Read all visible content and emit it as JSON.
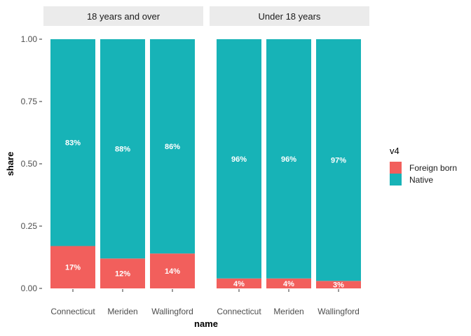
{
  "chart_data": {
    "type": "bar",
    "stacked": true,
    "xlabel": "name",
    "ylabel": "share",
    "ylim": [
      0,
      1
    ],
    "yticks": [
      "0.00",
      "0.25",
      "0.50",
      "0.75",
      "1.00"
    ],
    "grid": false,
    "legend": {
      "title": "v4",
      "position": "right",
      "entries": [
        {
          "label": "Foreign born",
          "color": "#F25F5C"
        },
        {
          "label": "Native",
          "color": "#17B3B7"
        }
      ]
    },
    "facets": [
      {
        "title": "18 years and over",
        "categories": [
          "Connecticut",
          "Meriden",
          "Wallingford"
        ],
        "series": [
          {
            "name": "Foreign born",
            "values": [
              0.17,
              0.12,
              0.14
            ],
            "labels": [
              "17%",
              "12%",
              "14%"
            ]
          },
          {
            "name": "Native",
            "values": [
              0.83,
              0.88,
              0.86
            ],
            "labels": [
              "83%",
              "88%",
              "86%"
            ]
          }
        ]
      },
      {
        "title": "Under 18 years",
        "categories": [
          "Connecticut",
          "Meriden",
          "Wallingford"
        ],
        "series": [
          {
            "name": "Foreign born",
            "values": [
              0.04,
              0.04,
              0.03
            ],
            "labels": [
              "4%",
              "4%",
              "3%"
            ]
          },
          {
            "name": "Native",
            "values": [
              0.96,
              0.96,
              0.97
            ],
            "labels": [
              "96%",
              "96%",
              "97%"
            ]
          }
        ]
      }
    ]
  }
}
